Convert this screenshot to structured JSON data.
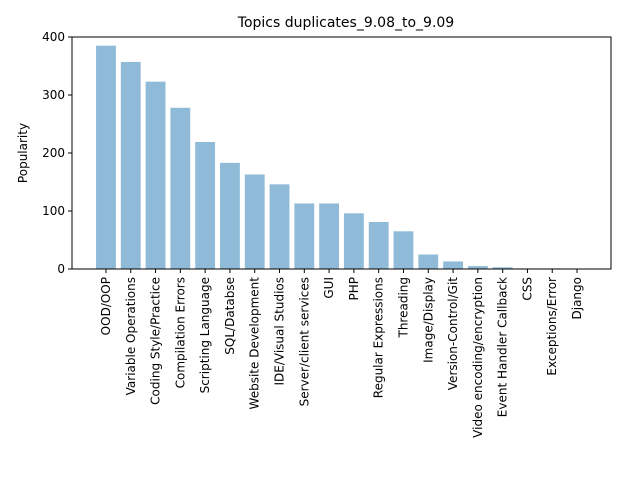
{
  "chart_data": {
    "type": "bar",
    "title": "Topics duplicates_9.08_to_9.09",
    "xlabel": "",
    "ylabel": "Popularity",
    "ylim": [
      0,
      400
    ],
    "yticks": [
      0,
      100,
      200,
      300,
      400
    ],
    "grid": false,
    "bar_color": "#8fbbd9",
    "categories": [
      "OOD/OOP",
      "Variable Operations",
      "Coding Style/Practice",
      "Compilation Errors",
      "Scripting Language",
      "SQL/Databse",
      "Website Development",
      "IDE/Visual Studios",
      "Server/client services",
      "GUI",
      "PHP",
      "Regular Expressions",
      "Threading",
      "Image/Display",
      "Version-Control/Git",
      "Video encoding/encryption",
      "Event Handler Callback",
      "CSS",
      "Exceptions/Error",
      "Django"
    ],
    "values": [
      385,
      357,
      323,
      278,
      219,
      183,
      163,
      146,
      113,
      113,
      96,
      81,
      65,
      25,
      13,
      5,
      3,
      1,
      1,
      0
    ]
  }
}
